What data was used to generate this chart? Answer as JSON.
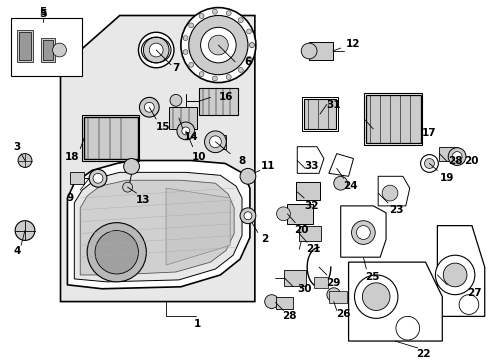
{
  "bg_color": "#ffffff",
  "line_color": "#000000",
  "figsize": [
    4.89,
    3.6
  ],
  "dpi": 100,
  "light_gray": "#d8d8d8",
  "med_gray": "#aaaaaa",
  "dark_gray": "#888888"
}
